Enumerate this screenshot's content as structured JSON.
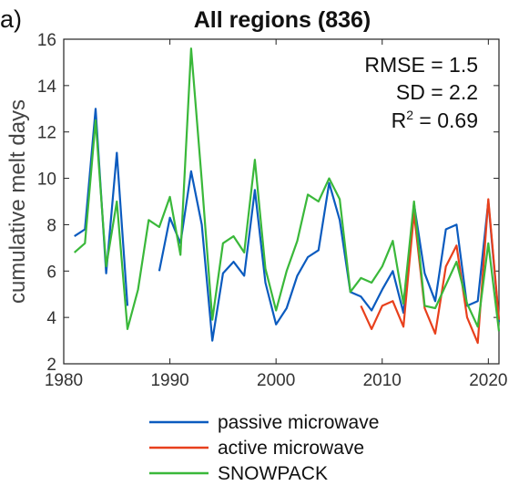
{
  "panel_label": "a)",
  "stats": {
    "rmse": "RMSE = 1.5",
    "sd": "SD = 2.2",
    "r2_prefix": "R",
    "r2_sup": "2",
    "r2_suffix": " = 0.69"
  },
  "chart_data": {
    "type": "line",
    "title": "All regions (836)",
    "xlabel": "",
    "ylabel": "cumulative melt days",
    "xlim": [
      1980,
      2021
    ],
    "ylim": [
      2,
      16
    ],
    "xticks": [
      1980,
      1990,
      2000,
      2010,
      2020
    ],
    "yticks": [
      2,
      4,
      6,
      8,
      10,
      12,
      14,
      16
    ],
    "grid": false,
    "legend": "bottom",
    "series": [
      {
        "name": "passive microwave",
        "color": "#0b5bbf",
        "points": [
          [
            1981,
            7.5
          ],
          [
            1982,
            7.8
          ],
          [
            1983,
            13.0
          ],
          [
            1984,
            5.9
          ],
          [
            1985,
            11.1
          ],
          [
            1986,
            4.5
          ],
          null,
          [
            1989,
            6.0
          ],
          [
            1990,
            8.3
          ],
          [
            1991,
            7.2
          ],
          [
            1992,
            10.3
          ],
          [
            1993,
            8.0
          ],
          [
            1994,
            3.0
          ],
          [
            1995,
            5.9
          ],
          [
            1996,
            6.4
          ],
          [
            1997,
            5.8
          ],
          [
            1998,
            9.5
          ],
          [
            1999,
            5.5
          ],
          [
            2000,
            3.7
          ],
          [
            2001,
            4.4
          ],
          [
            2002,
            5.8
          ],
          [
            2003,
            6.6
          ],
          [
            2004,
            6.9
          ],
          [
            2005,
            9.8
          ],
          [
            2006,
            8.2
          ],
          [
            2007,
            5.1
          ],
          [
            2008,
            4.9
          ],
          [
            2009,
            4.3
          ],
          [
            2010,
            5.2
          ],
          [
            2011,
            6.0
          ],
          [
            2012,
            4.2
          ],
          [
            2013,
            8.9
          ],
          [
            2014,
            5.9
          ],
          [
            2015,
            4.7
          ],
          [
            2016,
            7.8
          ],
          [
            2017,
            8.0
          ],
          [
            2018,
            4.5
          ],
          [
            2019,
            4.7
          ],
          [
            2020,
            9.0
          ],
          [
            2021,
            3.8
          ]
        ]
      },
      {
        "name": "active microwave",
        "color": "#e8401c",
        "points": [
          [
            2008,
            4.5
          ],
          [
            2009,
            3.5
          ],
          [
            2010,
            4.5
          ],
          [
            2011,
            4.7
          ],
          [
            2012,
            3.6
          ],
          [
            2013,
            8.5
          ],
          [
            2014,
            4.4
          ],
          [
            2015,
            3.3
          ],
          [
            2016,
            6.2
          ],
          [
            2017,
            7.1
          ],
          [
            2018,
            4.0
          ],
          [
            2019,
            2.9
          ],
          [
            2020,
            9.1
          ],
          [
            2021,
            3.9
          ]
        ]
      },
      {
        "name": "SNOWPACK",
        "color": "#3ab83a",
        "points": [
          [
            1981,
            6.8
          ],
          [
            1982,
            7.2
          ],
          [
            1983,
            12.5
          ],
          [
            1984,
            6.2
          ],
          [
            1985,
            9.0
          ],
          [
            1986,
            3.5
          ],
          [
            1987,
            5.2
          ],
          [
            1988,
            8.2
          ],
          [
            1989,
            7.9
          ],
          [
            1990,
            9.2
          ],
          [
            1991,
            6.7
          ],
          [
            1992,
            15.6
          ],
          [
            1993,
            9.9
          ],
          [
            1994,
            3.9
          ],
          [
            1995,
            7.2
          ],
          [
            1996,
            7.5
          ],
          [
            1997,
            6.8
          ],
          [
            1998,
            10.8
          ],
          [
            1999,
            6.1
          ],
          [
            2000,
            4.3
          ],
          [
            2001,
            6.0
          ],
          [
            2002,
            7.3
          ],
          [
            2003,
            9.3
          ],
          [
            2004,
            9.0
          ],
          [
            2005,
            10.0
          ],
          [
            2006,
            9.1
          ],
          [
            2007,
            5.1
          ],
          [
            2008,
            5.7
          ],
          [
            2009,
            5.5
          ],
          [
            2010,
            6.2
          ],
          [
            2011,
            7.3
          ],
          [
            2012,
            4.6
          ],
          [
            2013,
            9.0
          ],
          [
            2014,
            4.5
          ],
          [
            2015,
            4.4
          ],
          [
            2016,
            5.4
          ],
          [
            2017,
            6.4
          ],
          [
            2018,
            4.6
          ],
          [
            2019,
            3.6
          ],
          [
            2020,
            7.2
          ],
          [
            2021,
            3.4
          ]
        ]
      }
    ]
  }
}
